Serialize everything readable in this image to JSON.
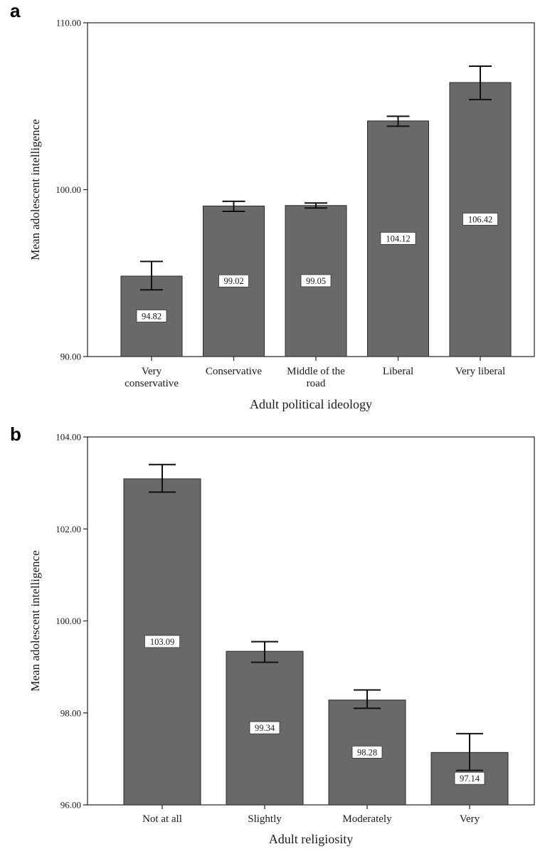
{
  "chart_data": [
    {
      "panel": "a",
      "type": "bar",
      "title": "",
      "xlabel": "Adult political ideology",
      "ylabel": "Mean adolescent intelligence",
      "ylim": [
        90,
        110
      ],
      "yticks": [
        "90.00",
        "100.00",
        "110.00"
      ],
      "categories": [
        [
          "Very",
          "conservative"
        ],
        [
          "Conservative"
        ],
        [
          "Middle of the",
          "road"
        ],
        [
          "Liberal"
        ],
        [
          "Very liberal"
        ]
      ],
      "values": [
        94.82,
        99.02,
        99.05,
        104.12,
        106.42
      ],
      "value_labels": [
        "94.82",
        "99.02",
        "99.05",
        "104.12",
        "106.42"
      ],
      "error_low": [
        94.0,
        98.7,
        98.9,
        103.8,
        105.4
      ],
      "error_high": [
        95.7,
        99.3,
        99.2,
        104.4,
        107.4
      ],
      "grid": false,
      "bar_color": "#696969"
    },
    {
      "panel": "b",
      "type": "bar",
      "title": "",
      "xlabel": "Adult religiosity",
      "ylabel": "Mean adolescent intelligence",
      "ylim": [
        96,
        104
      ],
      "yticks": [
        "96.00",
        "98.00",
        "100.00",
        "102.00",
        "104.00"
      ],
      "categories": [
        [
          "Not at all"
        ],
        [
          "Slightly"
        ],
        [
          "Moderately"
        ],
        [
          "Very"
        ]
      ],
      "values": [
        103.09,
        99.34,
        98.28,
        97.14
      ],
      "value_labels": [
        "103.09",
        "99.34",
        "98.28",
        "97.14"
      ],
      "error_low": [
        102.8,
        99.1,
        98.1,
        96.75
      ],
      "error_high": [
        103.4,
        99.55,
        98.5,
        97.55
      ],
      "grid": false,
      "bar_color": "#696969"
    }
  ]
}
